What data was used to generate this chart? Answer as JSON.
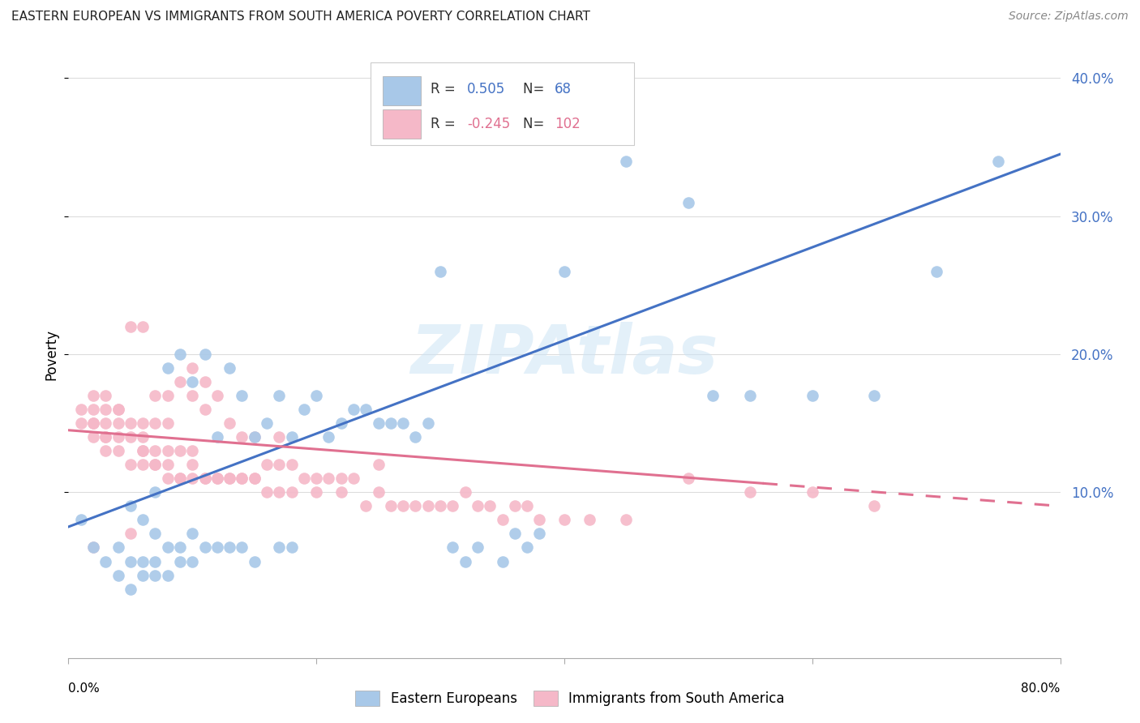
{
  "title": "EASTERN EUROPEAN VS IMMIGRANTS FROM SOUTH AMERICA POVERTY CORRELATION CHART",
  "source": "Source: ZipAtlas.com",
  "ylabel": "Poverty",
  "watermark": "ZIPAtlas",
  "legend_label1": "Eastern Europeans",
  "legend_label2": "Immigrants from South America",
  "blue_color": "#a8c8e8",
  "pink_color": "#f5b8c8",
  "blue_line_color": "#4472c4",
  "pink_line_color": "#e07090",
  "r1_text": "0.505",
  "n1_text": "68",
  "r2_text": "-0.245",
  "n2_text": "102",
  "xlim": [
    0.0,
    0.8
  ],
  "ylim": [
    -0.02,
    0.42
  ],
  "yticks": [
    0.1,
    0.2,
    0.3,
    0.4
  ],
  "ytick_labels": [
    "10.0%",
    "20.0%",
    "30.0%",
    "40.0%"
  ],
  "xticks": [
    0.0,
    0.2,
    0.4,
    0.6,
    0.8
  ],
  "blue_line_y_start": 0.075,
  "blue_line_y_end": 0.345,
  "pink_line_y_start": 0.145,
  "pink_line_y_end": 0.09,
  "pink_line_dash_start_x": 0.56,
  "background_color": "#ffffff",
  "grid_color": "#dddddd",
  "text_color_blue": "#4472c4",
  "text_color_pink": "#e07090",
  "text_color_black": "#333333",
  "blue_scatter_x": [
    0.01,
    0.02,
    0.03,
    0.04,
    0.04,
    0.05,
    0.05,
    0.05,
    0.06,
    0.06,
    0.06,
    0.07,
    0.07,
    0.07,
    0.07,
    0.08,
    0.08,
    0.08,
    0.09,
    0.09,
    0.09,
    0.1,
    0.1,
    0.1,
    0.11,
    0.11,
    0.12,
    0.12,
    0.13,
    0.13,
    0.14,
    0.14,
    0.15,
    0.15,
    0.16,
    0.17,
    0.17,
    0.18,
    0.18,
    0.19,
    0.2,
    0.21,
    0.22,
    0.23,
    0.24,
    0.25,
    0.26,
    0.27,
    0.28,
    0.29,
    0.3,
    0.31,
    0.32,
    0.33,
    0.35,
    0.36,
    0.37,
    0.38,
    0.4,
    0.42,
    0.45,
    0.5,
    0.52,
    0.55,
    0.6,
    0.65,
    0.7,
    0.75
  ],
  "blue_scatter_y": [
    0.08,
    0.06,
    0.05,
    0.04,
    0.06,
    0.03,
    0.05,
    0.09,
    0.04,
    0.05,
    0.08,
    0.04,
    0.05,
    0.07,
    0.1,
    0.04,
    0.06,
    0.19,
    0.05,
    0.06,
    0.2,
    0.05,
    0.07,
    0.18,
    0.06,
    0.2,
    0.06,
    0.14,
    0.06,
    0.19,
    0.06,
    0.17,
    0.05,
    0.14,
    0.15,
    0.06,
    0.17,
    0.06,
    0.14,
    0.16,
    0.17,
    0.14,
    0.15,
    0.16,
    0.16,
    0.15,
    0.15,
    0.15,
    0.14,
    0.15,
    0.26,
    0.06,
    0.05,
    0.06,
    0.05,
    0.07,
    0.06,
    0.07,
    0.26,
    0.36,
    0.34,
    0.31,
    0.17,
    0.17,
    0.17,
    0.17,
    0.26,
    0.34
  ],
  "pink_scatter_x": [
    0.01,
    0.01,
    0.02,
    0.02,
    0.02,
    0.02,
    0.02,
    0.03,
    0.03,
    0.03,
    0.03,
    0.03,
    0.04,
    0.04,
    0.04,
    0.04,
    0.05,
    0.05,
    0.05,
    0.05,
    0.06,
    0.06,
    0.06,
    0.06,
    0.06,
    0.07,
    0.07,
    0.07,
    0.07,
    0.08,
    0.08,
    0.08,
    0.08,
    0.09,
    0.09,
    0.09,
    0.1,
    0.1,
    0.1,
    0.1,
    0.11,
    0.11,
    0.11,
    0.12,
    0.12,
    0.13,
    0.13,
    0.14,
    0.14,
    0.15,
    0.15,
    0.16,
    0.17,
    0.17,
    0.18,
    0.19,
    0.2,
    0.21,
    0.22,
    0.23,
    0.24,
    0.25,
    0.26,
    0.27,
    0.28,
    0.29,
    0.3,
    0.31,
    0.32,
    0.33,
    0.34,
    0.35,
    0.36,
    0.37,
    0.38,
    0.4,
    0.42,
    0.45,
    0.5,
    0.55,
    0.6,
    0.65,
    0.02,
    0.03,
    0.04,
    0.05,
    0.06,
    0.07,
    0.08,
    0.09,
    0.1,
    0.11,
    0.12,
    0.13,
    0.14,
    0.15,
    0.16,
    0.17,
    0.18,
    0.2,
    0.22,
    0.25
  ],
  "pink_scatter_y": [
    0.15,
    0.16,
    0.14,
    0.15,
    0.15,
    0.16,
    0.17,
    0.13,
    0.14,
    0.15,
    0.16,
    0.17,
    0.13,
    0.14,
    0.15,
    0.16,
    0.12,
    0.14,
    0.15,
    0.22,
    0.12,
    0.13,
    0.14,
    0.15,
    0.22,
    0.12,
    0.13,
    0.15,
    0.17,
    0.11,
    0.13,
    0.15,
    0.17,
    0.11,
    0.13,
    0.18,
    0.11,
    0.13,
    0.17,
    0.19,
    0.11,
    0.16,
    0.18,
    0.11,
    0.17,
    0.11,
    0.15,
    0.11,
    0.14,
    0.11,
    0.14,
    0.12,
    0.12,
    0.14,
    0.12,
    0.11,
    0.11,
    0.11,
    0.11,
    0.11,
    0.09,
    0.12,
    0.09,
    0.09,
    0.09,
    0.09,
    0.09,
    0.09,
    0.1,
    0.09,
    0.09,
    0.08,
    0.09,
    0.09,
    0.08,
    0.08,
    0.08,
    0.08,
    0.11,
    0.1,
    0.1,
    0.09,
    0.06,
    0.14,
    0.16,
    0.07,
    0.13,
    0.12,
    0.12,
    0.11,
    0.12,
    0.11,
    0.11,
    0.11,
    0.11,
    0.11,
    0.1,
    0.1,
    0.1,
    0.1,
    0.1,
    0.1
  ]
}
